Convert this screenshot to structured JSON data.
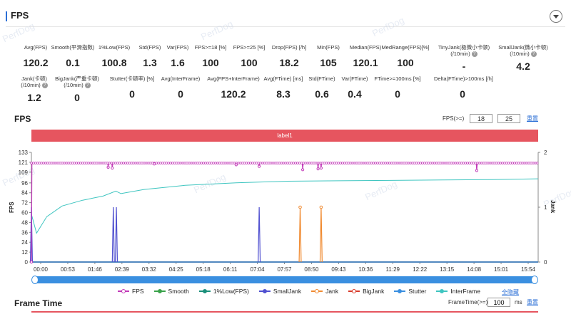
{
  "header": {
    "title": "FPS"
  },
  "watermark": "PerfDog",
  "metrics_row1": [
    {
      "label": "Avg(FPS)",
      "value": "120.2"
    },
    {
      "label": "Smooth(平滑指数)",
      "value": "0.1"
    },
    {
      "label": "1%Low(FPS)",
      "value": "100.8"
    },
    {
      "label": "Std(FPS)",
      "value": "1.3"
    },
    {
      "label": "Var(FPS)",
      "value": "1.6"
    },
    {
      "label": "FPS>=18 [%]",
      "value": "100"
    },
    {
      "label": "FPS>=25 [%]",
      "value": "100"
    },
    {
      "label": "Drop(FPS) [/h]",
      "value": "18.2"
    },
    {
      "label": "Min(FPS)",
      "value": "105"
    },
    {
      "label": "Median(FPS)",
      "value": "120.1"
    },
    {
      "label": "MedRange(FPS)[%]",
      "value": "100"
    },
    {
      "label": "TinyJank(极微小卡顿)",
      "label2": "(/10min)",
      "value": "-"
    },
    {
      "label": "SmallJank(微小卡顿)",
      "label2": "(/10min)",
      "value": "4.2"
    }
  ],
  "metrics_row2": [
    {
      "label": "Jank(卡顿)",
      "label2": "(/10min)",
      "value": "1.2"
    },
    {
      "label": "BigJank(严重卡顿)",
      "label2": "(/10min)",
      "value": "0"
    },
    {
      "label": "Stutter(卡顿率) [%]",
      "value": "0"
    },
    {
      "label": "Avg(InterFrame)",
      "value": "0"
    },
    {
      "label": "Avg(FPS+InterFrame)",
      "value": "120.2"
    },
    {
      "label": "Avg(FTime) [ms]",
      "value": "8.3"
    },
    {
      "label": "Std(FTime)",
      "value": "0.6"
    },
    {
      "label": "Var(FTime)",
      "value": "0.4"
    },
    {
      "label": "FTime>=100ms [%]",
      "value": "0"
    },
    {
      "label": "Delta(FTime)>100ms [/h]",
      "value": "0"
    }
  ],
  "fps_section": {
    "title": "FPS",
    "threshold_label": "FPS(>=)",
    "threshold_1": "18",
    "threshold_2": "25",
    "reset_link": "重置",
    "label_bar": "label1"
  },
  "legend_toggle": "全隐藏",
  "frame_section": {
    "title": "Frame Time",
    "threshold_label": "FrameTime(>=)",
    "threshold_value": "100",
    "unit": "ms",
    "reset_link": "重置"
  },
  "chart_data": {
    "type": "line",
    "ylabel": "FPS",
    "y2label": "Jank",
    "ylim": [
      0,
      133
    ],
    "yticks": [
      0,
      12,
      24,
      36,
      48,
      60,
      72,
      84,
      96,
      109,
      121,
      133
    ],
    "y2lim": [
      0,
      2
    ],
    "y2ticks": [
      0,
      1,
      2
    ],
    "xticks": [
      "00:00",
      "00:53",
      "01:46",
      "02:39",
      "03:32",
      "04:25",
      "05:18",
      "06:11",
      "07:04",
      "07:57",
      "08:50",
      "09:43",
      "10:36",
      "11:29",
      "12:22",
      "13:15",
      "14:08",
      "15:01",
      "15:54"
    ],
    "x_range_seconds": [
      0,
      990
    ],
    "series": [
      {
        "name": "FPS",
        "color": "#c23ab8",
        "marker": "hollow",
        "base": 120,
        "dips": [
          [
            0,
            0
          ],
          [
            150,
            115
          ],
          [
            158,
            114
          ],
          [
            240,
            119
          ],
          [
            400,
            118
          ],
          [
            445,
            116
          ],
          [
            530,
            112
          ],
          [
            560,
            113
          ],
          [
            566,
            114
          ],
          [
            870,
            111
          ]
        ]
      },
      {
        "name": "Smooth",
        "color": "#3aa24a",
        "marker": "solid",
        "value": 0
      },
      {
        "name": "1%Low(FPS)",
        "color": "#1a8f7a",
        "marker": "solid",
        "value": 0
      },
      {
        "name": "SmallJank",
        "color": "#5050d0",
        "marker": "solid",
        "spikes": [
          [
            0,
            1
          ],
          [
            160,
            1
          ],
          [
            166,
            1
          ],
          [
            445,
            1
          ]
        ]
      },
      {
        "name": "Jank",
        "color": "#f08a30",
        "marker": "hollow",
        "spikes": [
          [
            525,
            1
          ],
          [
            566,
            1
          ]
        ]
      },
      {
        "name": "BigJank",
        "color": "#d83a2a",
        "marker": "hollow",
        "value": 0
      },
      {
        "name": "Stutter",
        "color": "#3a8fe0",
        "marker": "solid",
        "value": 0
      },
      {
        "name": "InterFrame",
        "color": "#3ec5c0",
        "marker": "solid",
        "points": [
          [
            0,
            58
          ],
          [
            10,
            35
          ],
          [
            30,
            55
          ],
          [
            60,
            68
          ],
          [
            100,
            75
          ],
          [
            140,
            80
          ],
          [
            165,
            86
          ],
          [
            175,
            83
          ],
          [
            220,
            88
          ],
          [
            300,
            93
          ],
          [
            400,
            96
          ],
          [
            500,
            98
          ],
          [
            600,
            98.5
          ],
          [
            700,
            99
          ],
          [
            800,
            99.5
          ],
          [
            900,
            100
          ],
          [
            990,
            101
          ]
        ]
      }
    ]
  }
}
